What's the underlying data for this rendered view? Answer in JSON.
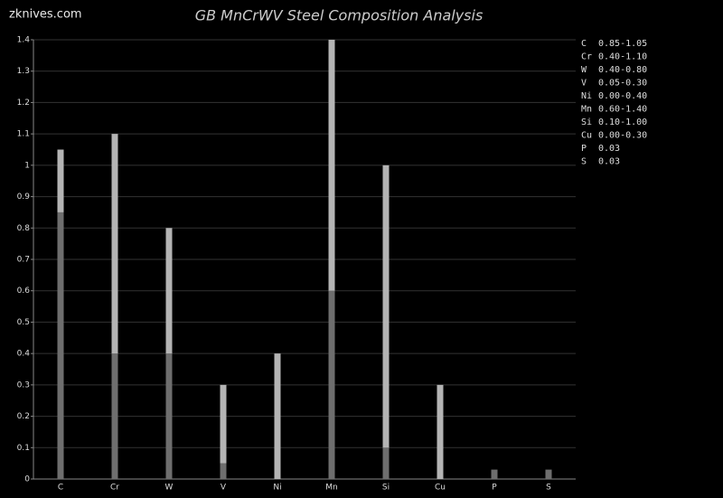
{
  "site": "zknives.com",
  "chart_data": {
    "type": "range_bar",
    "title": "GB MnCrWV Steel Composition Analysis",
    "categories": [
      "C",
      "Cr",
      "W",
      "V",
      "Ni",
      "Mn",
      "Si",
      "Cu",
      "P",
      "S"
    ],
    "min_values": [
      0.85,
      0.4,
      0.4,
      0.05,
      0.0,
      0.6,
      0.1,
      0.0,
      null,
      null
    ],
    "max_values": [
      1.05,
      1.1,
      0.8,
      0.3,
      0.4,
      1.4,
      1.0,
      0.3,
      0.03,
      0.03
    ],
    "range_labels": [
      "0.85-1.05",
      "0.40-1.10",
      "0.40-0.80",
      "0.05-0.30",
      "0.00-0.40",
      "0.60-1.40",
      "0.10-1.00",
      "0.00-0.30",
      "0.03",
      "0.03"
    ],
    "min_color": "#6e6e6e",
    "max_color": "#b4b4b4",
    "ylim": [
      0,
      1.4
    ],
    "yticks": [
      0,
      0.1,
      0.2,
      0.3,
      0.4,
      0.5,
      0.6,
      0.7,
      0.8,
      0.9,
      1,
      1.1,
      1.2,
      1.3,
      1.4
    ],
    "grid": true
  }
}
